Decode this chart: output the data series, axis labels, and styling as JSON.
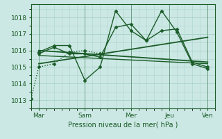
{
  "bg_color": "#cce8e4",
  "grid_color": "#aad4cc",
  "line_color": "#1a5c28",
  "xlabel": "Pression niveau de la mer( hPa )",
  "ylim": [
    1012.5,
    1018.8
  ],
  "yticks": [
    1013,
    1014,
    1015,
    1016,
    1017,
    1018
  ],
  "xlim": [
    0,
    24
  ],
  "xtick_labels": [
    "Mar",
    "Sam",
    "Mer",
    "Jeu",
    "Ven"
  ],
  "xtick_positions": [
    1,
    7,
    13,
    18,
    23
  ],
  "lines": [
    {
      "x": [
        0,
        1,
        3,
        5,
        7,
        9
      ],
      "y": [
        1013.1,
        1015.0,
        1015.2,
        1015.9,
        1016.0,
        1015.8
      ],
      "style": ":",
      "marker": "D",
      "lw": 1.0,
      "ms": 2.5
    },
    {
      "x": [
        1,
        3,
        5,
        7,
        9,
        11,
        13,
        15,
        17,
        19,
        21,
        23
      ],
      "y": [
        1015.9,
        1016.3,
        1016.3,
        1014.2,
        1015.0,
        1018.4,
        1017.2,
        1016.6,
        1018.4,
        1017.1,
        1015.2,
        1014.9
      ],
      "style": "-",
      "marker": "D",
      "lw": 1.0,
      "ms": 2.5
    },
    {
      "x": [
        1,
        3,
        5,
        7,
        9,
        11,
        13,
        15,
        17,
        19,
        21,
        23
      ],
      "y": [
        1015.8,
        1016.2,
        1015.8,
        1015.8,
        1015.6,
        1017.4,
        1017.6,
        1016.6,
        1017.2,
        1017.3,
        1015.3,
        1015.0
      ],
      "style": "-",
      "marker": "D",
      "lw": 1.0,
      "ms": 2.5
    },
    {
      "x": [
        1,
        23
      ],
      "y": [
        1016.0,
        1015.3
      ],
      "style": "-",
      "marker": "None",
      "lw": 1.3,
      "ms": 0
    },
    {
      "x": [
        1,
        23
      ],
      "y": [
        1015.2,
        1016.8
      ],
      "style": "-",
      "marker": "None",
      "lw": 1.3,
      "ms": 0
    },
    {
      "x": [
        1,
        23
      ],
      "y": [
        1015.7,
        1015.2
      ],
      "style": "-",
      "marker": "None",
      "lw": 1.0,
      "ms": 0
    }
  ]
}
